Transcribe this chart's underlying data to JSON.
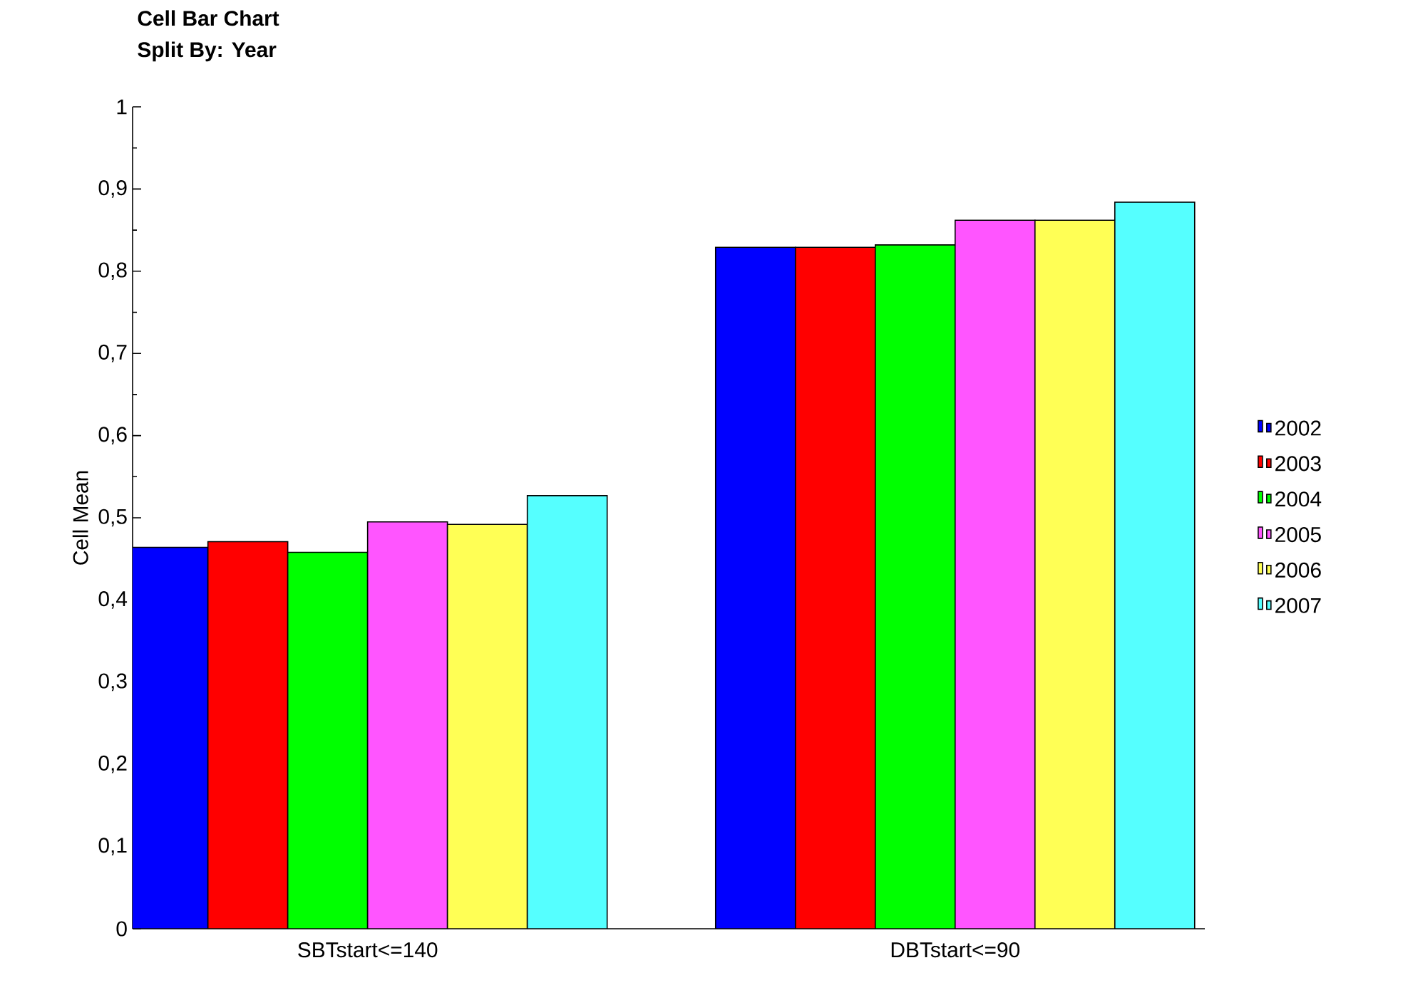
{
  "chart_data": {
    "type": "bar",
    "title": "Cell Bar Chart",
    "subtitle": "Split By: Year",
    "ylabel": "Cell Mean",
    "categories": [
      "SBTstart<=140",
      "DBTstart<=90"
    ],
    "series": [
      {
        "name": "2002",
        "color": "#0000ff",
        "values": [
          0.464,
          0.829
        ]
      },
      {
        "name": "2003",
        "color": "#ff0000",
        "values": [
          0.471,
          0.829
        ]
      },
      {
        "name": "2004",
        "color": "#00ff00",
        "values": [
          0.458,
          0.832
        ]
      },
      {
        "name": "2005",
        "color": "#ff55ff",
        "values": [
          0.495,
          0.862
        ]
      },
      {
        "name": "2006",
        "color": "#ffff55",
        "values": [
          0.492,
          0.862
        ]
      },
      {
        "name": "2007",
        "color": "#55ffff",
        "values": [
          0.527,
          0.884
        ]
      }
    ],
    "ylim": [
      0,
      1
    ],
    "yticks": [
      {
        "value": 0,
        "label": "0"
      },
      {
        "value": 0.1,
        "label": "0,1"
      },
      {
        "value": 0.2,
        "label": "0,2"
      },
      {
        "value": 0.3,
        "label": "0,3"
      },
      {
        "value": 0.4,
        "label": "0,4"
      },
      {
        "value": 0.5,
        "label": "0,5"
      },
      {
        "value": 0.6,
        "label": "0,6"
      },
      {
        "value": 0.7,
        "label": "0,7"
      },
      {
        "value": 0.8,
        "label": "0,8"
      },
      {
        "value": 0.9,
        "label": "0,9"
      },
      {
        "value": 1,
        "label": "1"
      }
    ],
    "grid": false,
    "legend": "right"
  }
}
